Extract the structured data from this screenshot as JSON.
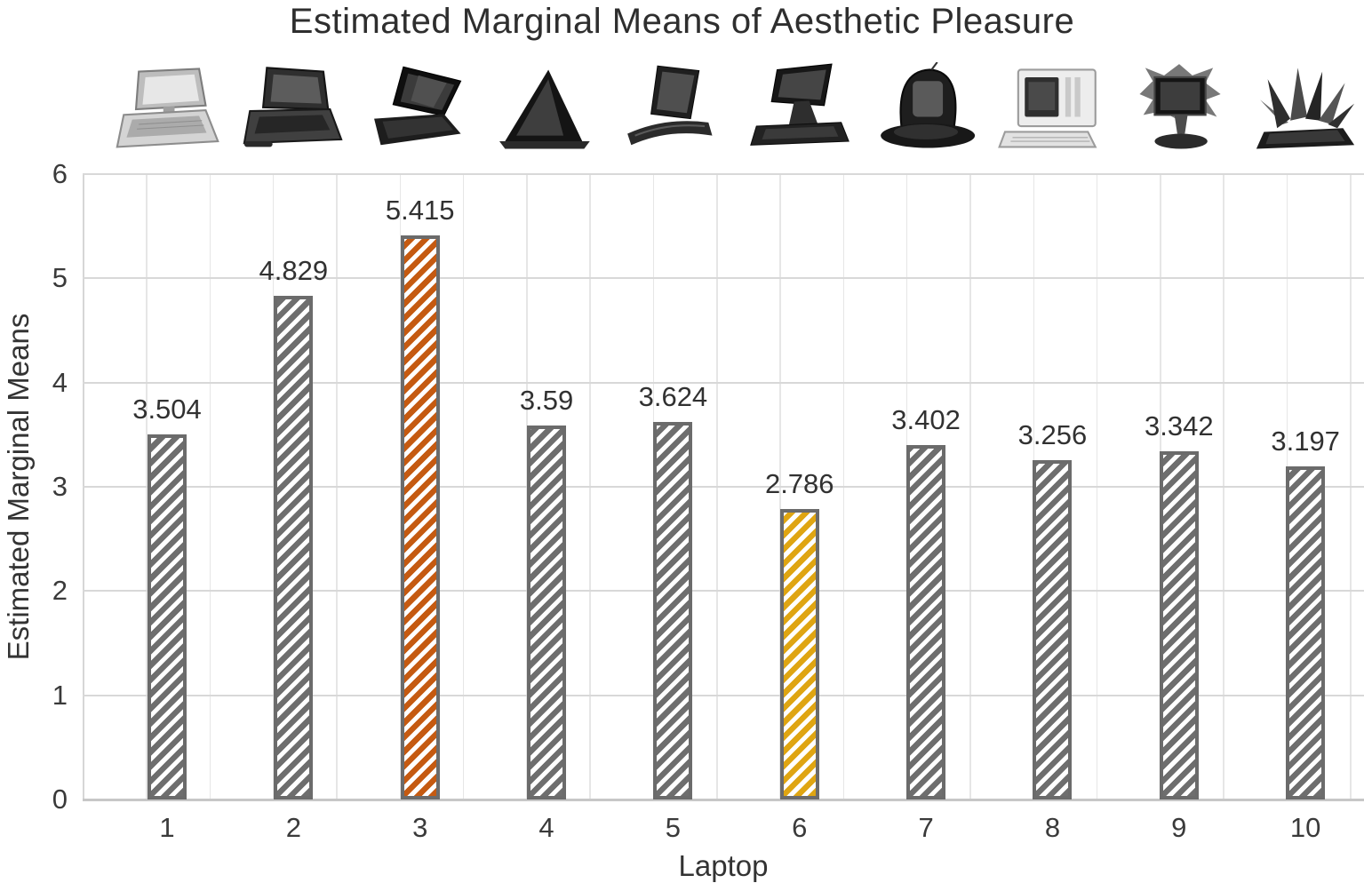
{
  "title": "Estimated Marginal Means of Aesthetic Pleasure",
  "chart_data": {
    "type": "bar",
    "title": "Estimated Marginal Means of Aesthetic Pleasure",
    "xlabel": "Laptop",
    "ylabel": "Estimated Marginal Means",
    "categories": [
      "1",
      "2",
      "3",
      "4",
      "5",
      "6",
      "7",
      "8",
      "9",
      "10"
    ],
    "values": [
      3.504,
      4.829,
      5.415,
      3.59,
      3.624,
      2.786,
      3.402,
      3.256,
      3.342,
      3.197
    ],
    "value_labels": [
      "3.504",
      "4.829",
      "5.415",
      "3.59",
      "3.624",
      "2.786",
      "3.402",
      "3.256",
      "3.342",
      "3.197"
    ],
    "ylim": [
      0,
      6
    ],
    "yticks": [
      0,
      1,
      2,
      3,
      4,
      5,
      6
    ],
    "grid": "both",
    "legend": "none",
    "bar_style": "diagonal-hatch",
    "hatch_direction": "forward-slash",
    "bar_hatch_colors": [
      "#6e6e6e",
      "#6e6e6e",
      "#c55a11",
      "#6e6e6e",
      "#6e6e6e",
      "#dfa512",
      "#6e6e6e",
      "#6e6e6e",
      "#6e6e6e",
      "#6e6e6e"
    ],
    "bar_border_color": "#6b6b6b"
  },
  "icons": [
    "vintage-laptop-image",
    "rugged-laptop-image",
    "modern-black-laptop-image",
    "tent-convertible-laptop-image",
    "curved-slim-laptop-image",
    "tilted-screen-laptop-image",
    "rounded-clamshell-laptop-image",
    "portable-computer-image",
    "spiky-monitor-concept-image",
    "exploded-laptop-concept-image"
  ]
}
